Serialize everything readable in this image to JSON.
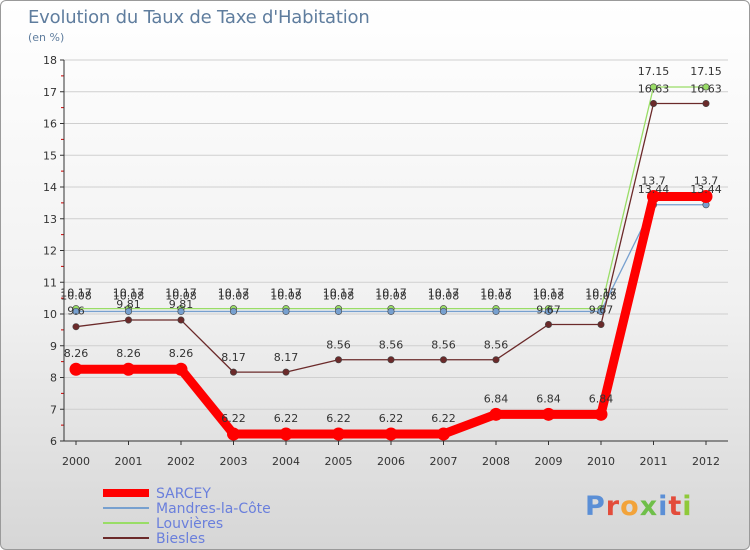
{
  "title": "Evolution du Taux de Taxe d'Habitation",
  "unit": "(en %)",
  "brand": {
    "text": "Proxiti"
  },
  "chart_data": {
    "type": "line",
    "title": "Evolution du Taux de Taxe d'Habitation",
    "ylabel": "(en %)",
    "xlabel": "",
    "ylim": [
      6,
      18
    ],
    "yticks": [
      "6",
      "7",
      "8",
      "9",
      "10",
      "11",
      "12",
      "13",
      "14",
      "15",
      "16",
      "17",
      "18"
    ],
    "categories": [
      "2000",
      "2001",
      "2002",
      "2003",
      "2004",
      "2005",
      "2006",
      "2007",
      "2008",
      "2009",
      "2010",
      "2011",
      "2012"
    ],
    "grid": true,
    "legend": "bottom-left",
    "series": [
      {
        "name": "SARCEY",
        "color": "#ff0000",
        "values": [
          8.26,
          8.26,
          8.26,
          6.22,
          6.22,
          6.22,
          6.22,
          6.22,
          6.84,
          6.84,
          6.84,
          13.7,
          13.7
        ],
        "labels": [
          "8.26",
          "8.26",
          "8.26",
          "6.22",
          "6.22",
          "6.22",
          "6.22",
          "6.22",
          "6.84",
          "6.84",
          "6.84",
          "13.7",
          "13.7"
        ]
      },
      {
        "name": "Mandres-la-Côte",
        "color": "#77a0cf",
        "values": [
          10.08,
          10.08,
          10.08,
          10.08,
          10.08,
          10.08,
          10.08,
          10.08,
          10.08,
          10.08,
          10.08,
          13.44,
          13.44
        ],
        "labels": [
          "10.08",
          "10.08",
          "10.08",
          "10.08",
          "10.08",
          "10.08",
          "10.08",
          "10.08",
          "10.08",
          "10.08",
          "10.08",
          "13.44",
          "13.44"
        ]
      },
      {
        "name": "Louvières",
        "color": "#99dd66",
        "values": [
          10.17,
          10.17,
          10.17,
          10.17,
          10.17,
          10.17,
          10.17,
          10.17,
          10.17,
          10.17,
          10.17,
          17.15,
          17.15
        ],
        "labels": [
          "10.17",
          "10.17",
          "10.17",
          "10.17",
          "10.17",
          "10.17",
          "10.17",
          "10.17",
          "10.17",
          "10.17",
          "10.17",
          "17.15",
          "17.15"
        ]
      },
      {
        "name": "Biesles",
        "color": "#6b2a2a",
        "values": [
          9.6,
          9.81,
          9.81,
          8.17,
          8.17,
          8.56,
          8.56,
          8.56,
          8.56,
          9.67,
          9.67,
          16.63,
          16.63
        ],
        "labels": [
          "9.6",
          "9.81",
          "9.81",
          "8.17",
          "8.17",
          "8.56",
          "8.56",
          "8.56",
          "8.56",
          "9.67",
          "9.67",
          "16.63",
          "16.63"
        ]
      }
    ]
  }
}
